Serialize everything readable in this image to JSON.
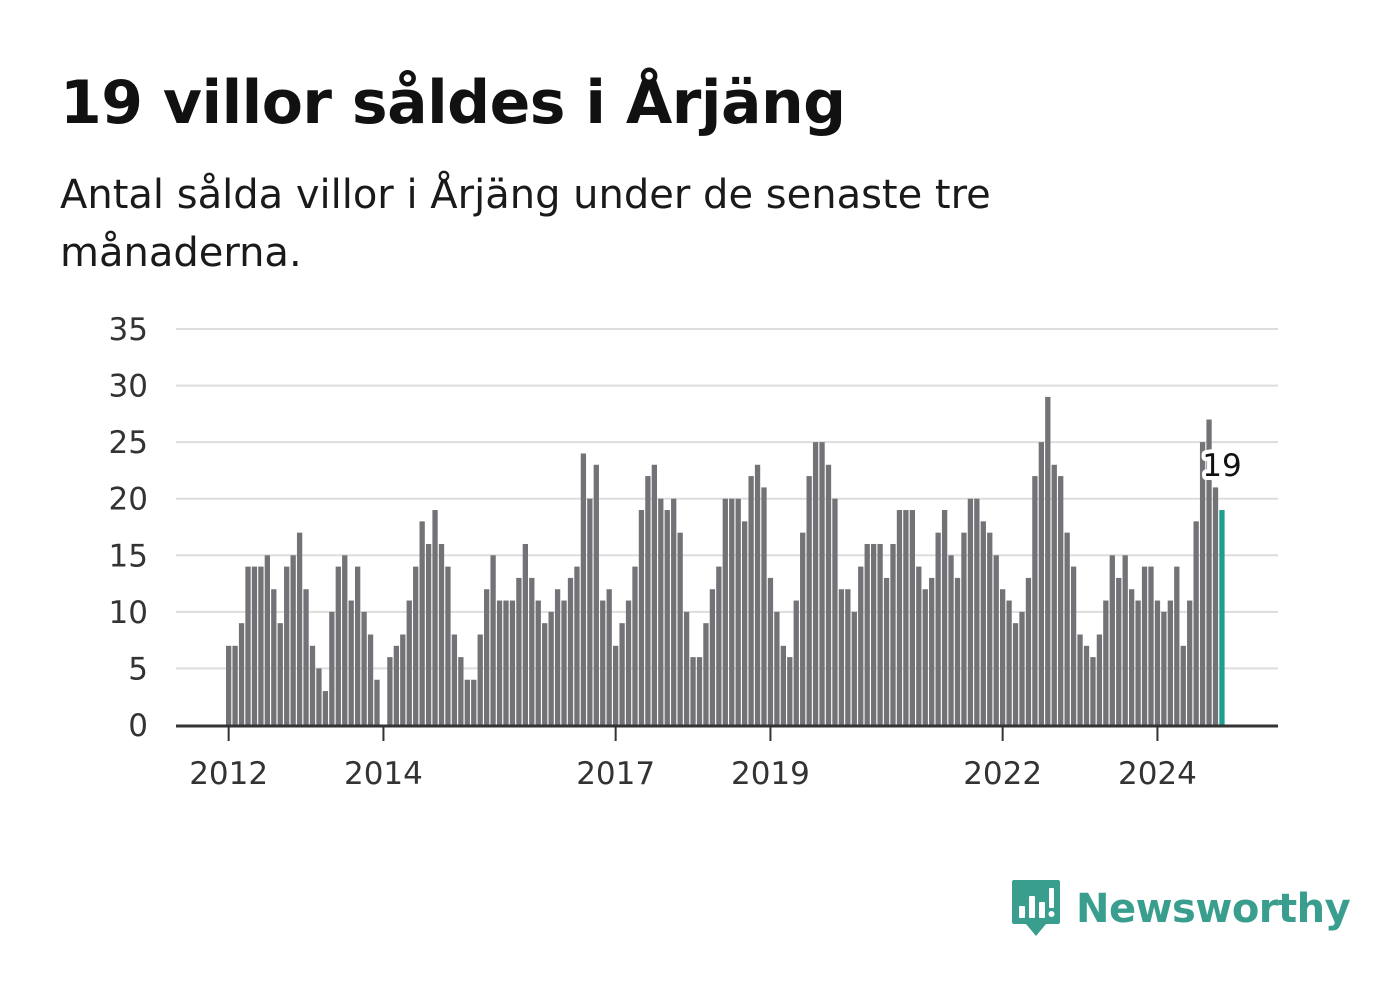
{
  "title": "19 villor såldes i Årjäng",
  "subtitle": "Antal sålda villor i Årjäng under de senaste tre månaderna.",
  "brand": "Newsworthy",
  "colors": {
    "bar": "#737277",
    "highlight": "#1f9e8e",
    "grid": "#dddddd",
    "axis": "#333333",
    "brand": "#3a9e8f"
  },
  "chart_data": {
    "type": "bar",
    "start": "2012-01",
    "yticks": [
      0,
      5,
      10,
      15,
      20,
      25,
      30,
      35
    ],
    "ylim": [
      0,
      35
    ],
    "xticks": [
      {
        "label": "2012",
        "index": 0
      },
      {
        "label": "2014",
        "index": 24
      },
      {
        "label": "2017",
        "index": 60
      },
      {
        "label": "2019",
        "index": 84
      },
      {
        "label": "2022",
        "index": 120
      },
      {
        "label": "2024",
        "index": 144
      }
    ],
    "highlight_label": "19",
    "values": [
      7,
      7,
      9,
      14,
      14,
      14,
      15,
      12,
      9,
      14,
      15,
      17,
      12,
      7,
      5,
      3,
      10,
      14,
      15,
      11,
      14,
      10,
      8,
      4,
      0,
      6,
      7,
      8,
      11,
      14,
      18,
      16,
      19,
      16,
      14,
      8,
      6,
      4,
      4,
      8,
      12,
      15,
      11,
      11,
      11,
      13,
      16,
      13,
      11,
      9,
      10,
      12,
      11,
      13,
      14,
      24,
      20,
      23,
      11,
      12,
      7,
      9,
      11,
      14,
      19,
      22,
      23,
      20,
      19,
      20,
      17,
      10,
      6,
      6,
      9,
      12,
      14,
      20,
      20,
      20,
      18,
      22,
      23,
      21,
      13,
      10,
      7,
      6,
      11,
      17,
      22,
      25,
      25,
      23,
      20,
      12,
      12,
      10,
      14,
      16,
      16,
      16,
      13,
      16,
      19,
      19,
      19,
      14,
      12,
      13,
      17,
      19,
      15,
      13,
      17,
      20,
      20,
      18,
      17,
      15,
      12,
      11,
      9,
      10,
      13,
      22,
      25,
      29,
      23,
      22,
      17,
      14,
      8,
      7,
      6,
      8,
      11,
      15,
      13,
      15,
      12,
      11,
      14,
      14,
      11,
      10,
      11,
      14,
      7,
      11,
      18,
      25,
      27,
      21,
      19
    ]
  }
}
